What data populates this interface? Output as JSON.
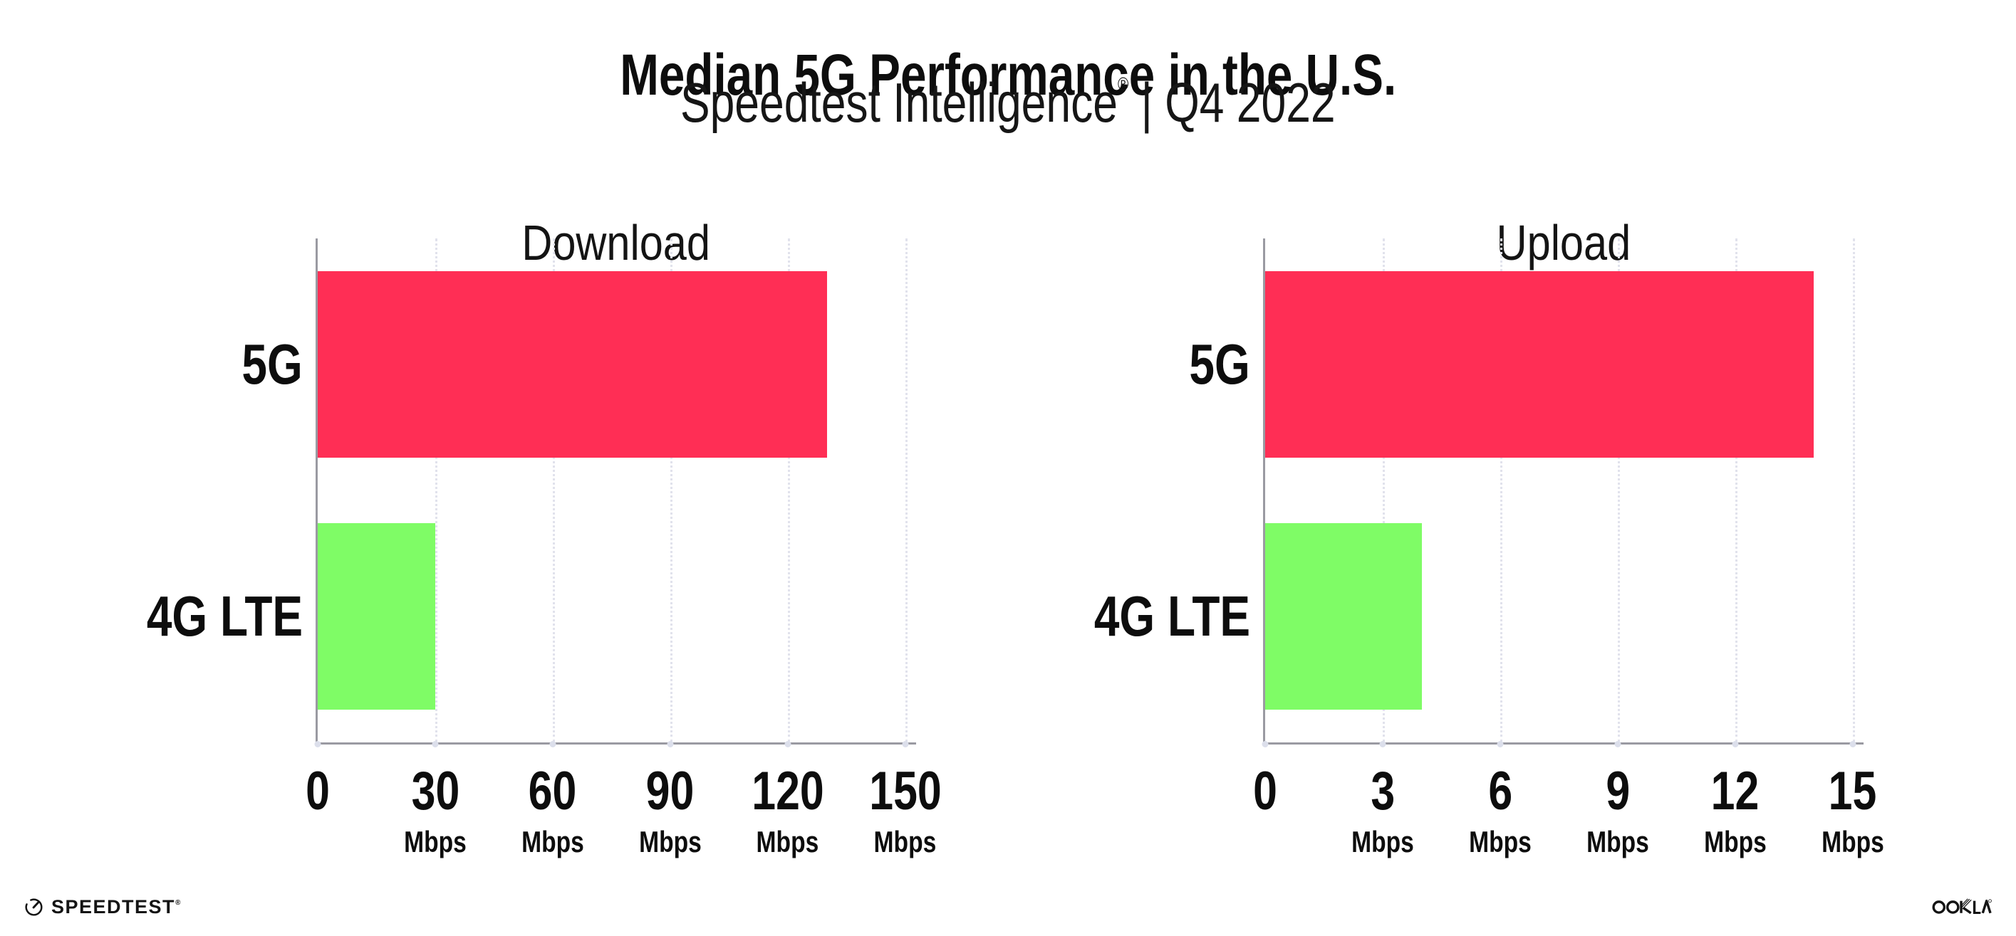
{
  "header": {
    "title": "Median 5G Performance in the U.S.",
    "subtitle_brand": "Speedtest Intelligence",
    "subtitle_reg": "®",
    "subtitle_rest": " | Q4 2022"
  },
  "chart_data": [
    {
      "type": "bar",
      "orientation": "horizontal",
      "title": "Download",
      "categories": [
        "5G",
        "4G LTE"
      ],
      "values": [
        130,
        30
      ],
      "unit": "Mbps",
      "xticks": [
        0,
        30,
        60,
        90,
        120,
        150
      ],
      "xlim": [
        0,
        150
      ],
      "grid": "vertical-dotted",
      "legend": "none",
      "bar_colors": [
        "#FF2E55",
        "#7FFC66"
      ]
    },
    {
      "type": "bar",
      "orientation": "horizontal",
      "title": "Upload",
      "categories": [
        "5G",
        "4G LTE"
      ],
      "values": [
        14,
        4
      ],
      "unit": "Mbps",
      "xticks": [
        0,
        3,
        6,
        9,
        12,
        15
      ],
      "xlim": [
        0,
        15
      ],
      "grid": "vertical-dotted",
      "legend": "none",
      "bar_colors": [
        "#FF2E55",
        "#7FFC66"
      ]
    }
  ],
  "colors": {
    "bar_5g": "#FF2E55",
    "bar_4g_lte": "#7FFC66",
    "axis_line": "#9a9aa2",
    "gridline": "#e1e2ec",
    "tick_dot": "#dcdfeb",
    "text": "#0d0d0d",
    "background": "#ffffff"
  },
  "footer": {
    "speedtest_text": "SPEEDTEST",
    "speedtest_reg": "®",
    "ookla_text": "OOKLA",
    "ookla_reg": "®"
  }
}
